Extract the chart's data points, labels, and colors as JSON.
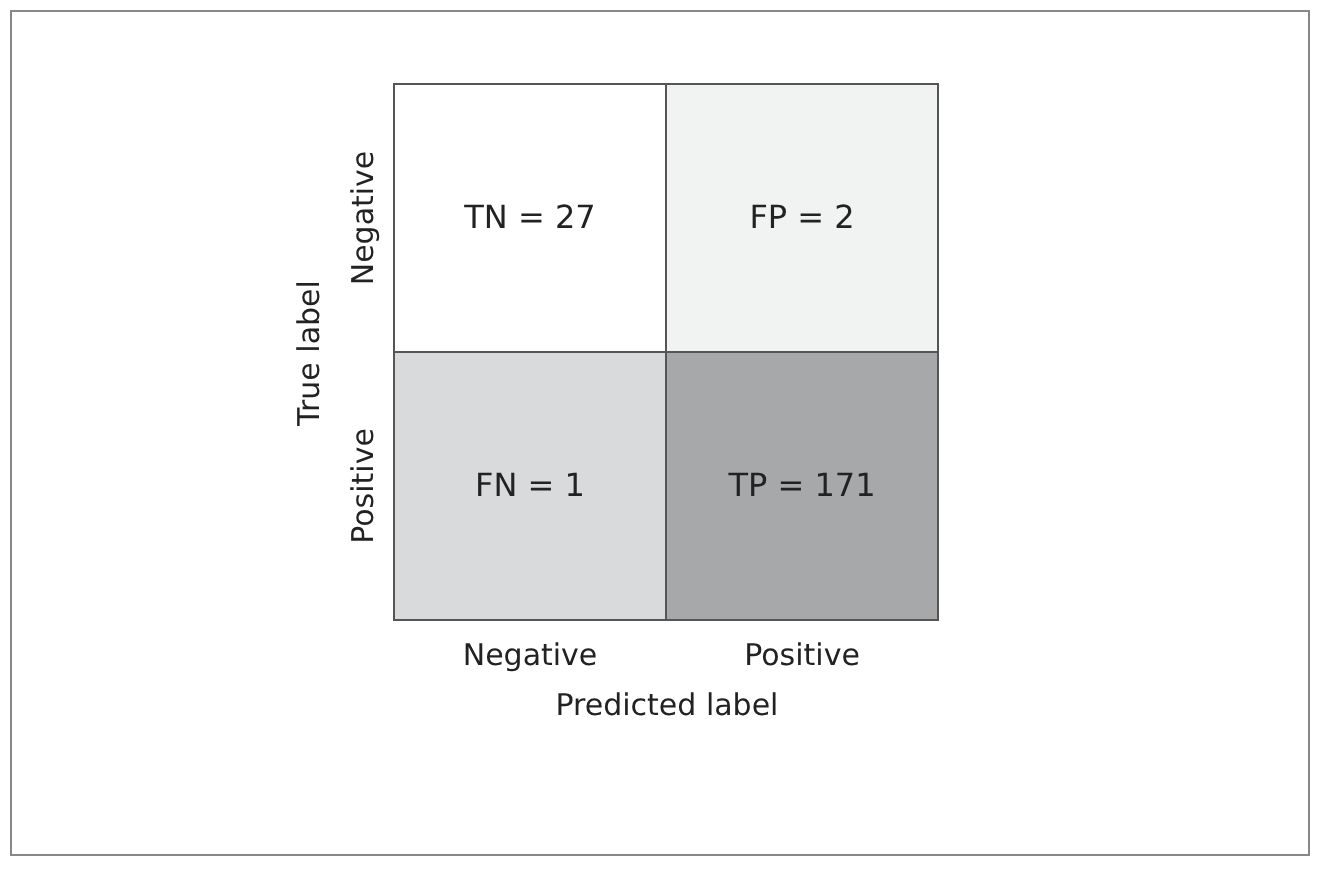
{
  "chart_data": {
    "type": "heatmap",
    "xlabel": "Predicted label",
    "ylabel": "True label",
    "categories": [
      "Negative",
      "Positive"
    ],
    "y_categories": [
      "Negative",
      "Positive"
    ],
    "cells": [
      [
        27,
        2
      ],
      [
        1,
        171
      ]
    ],
    "cell_labels": [
      [
        "TN = 27",
        "FP = 2"
      ],
      [
        "FN = 1",
        "TP = 171"
      ]
    ],
    "colors": [
      "#ffffff",
      "#f1f2f2",
      "#d9dadb",
      "#a7a8aa"
    ]
  }
}
